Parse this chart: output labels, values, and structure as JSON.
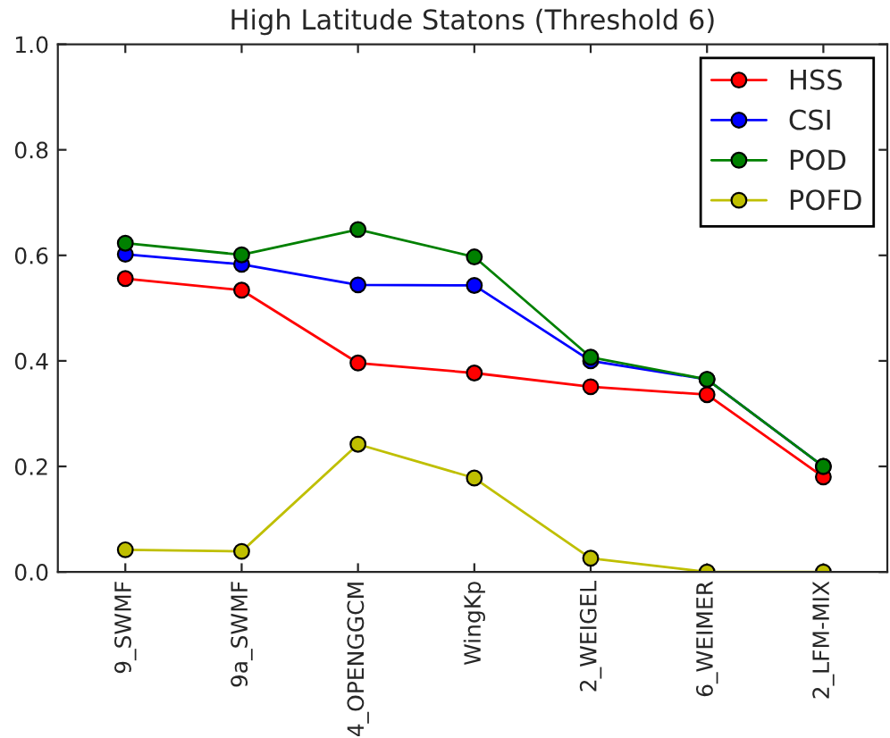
{
  "chart_data": {
    "type": "line",
    "title": "High Latitude Statons (Threshold 6)",
    "categories": [
      "9_SWMF",
      "9a_SWMF",
      "4_OPENGGCM",
      "WingKp",
      "2_WEIGEL",
      "6_WEIMER",
      "2_LFM-MIX"
    ],
    "series": [
      {
        "name": "HSS",
        "color": "#ff0000",
        "values": [
          0.556,
          0.534,
          0.396,
          0.377,
          0.351,
          0.336,
          0.18
        ]
      },
      {
        "name": "CSI",
        "color": "#0000ff",
        "values": [
          0.602,
          0.583,
          0.544,
          0.543,
          0.4,
          0.365,
          0.2
        ]
      },
      {
        "name": "POD",
        "color": "#008000",
        "values": [
          0.623,
          0.601,
          0.649,
          0.597,
          0.407,
          0.365,
          0.2
        ]
      },
      {
        "name": "POFD",
        "color": "#bfbf00",
        "values": [
          0.042,
          0.039,
          0.242,
          0.178,
          0.026,
          0.0,
          0.0
        ]
      }
    ],
    "ylim": [
      0.0,
      1.0
    ],
    "yticks": [
      {
        "value": 0.0,
        "label": "0.0"
      },
      {
        "value": 0.2,
        "label": "0.2"
      },
      {
        "value": 0.4,
        "label": "0.4"
      },
      {
        "value": 0.6,
        "label": "0.6"
      },
      {
        "value": 0.8,
        "label": "0.8"
      },
      {
        "value": 1.0,
        "label": "1.0"
      }
    ],
    "legend": "top right",
    "marker": "circle",
    "line_style": "solid",
    "grid": false
  }
}
